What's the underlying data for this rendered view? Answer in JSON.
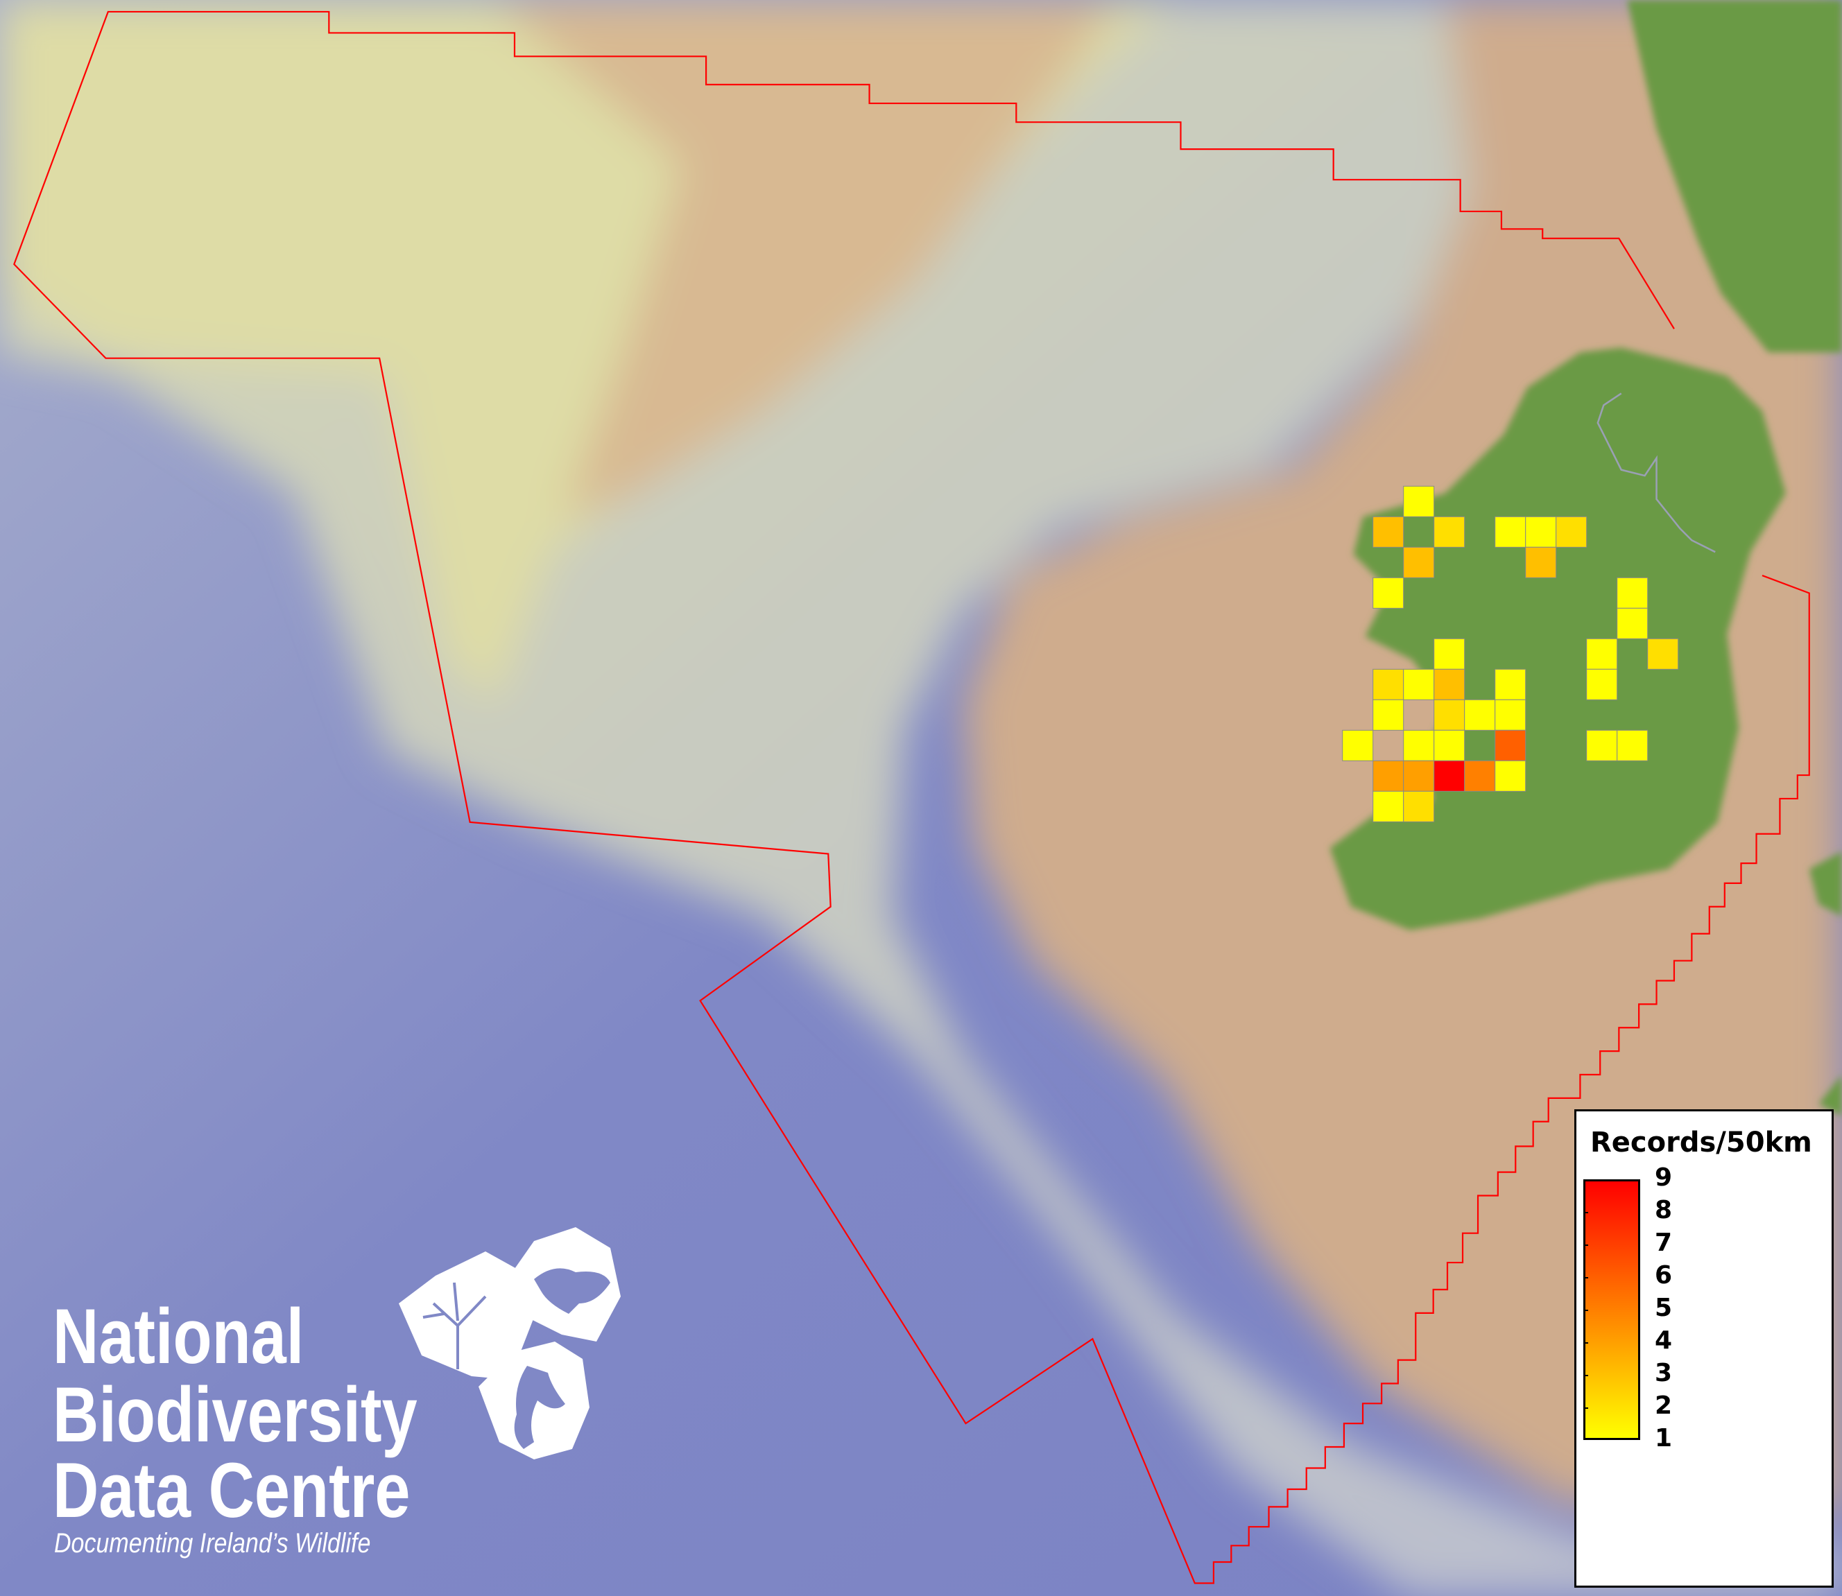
{
  "map": {
    "colors": {
      "ocean": "#8088c6",
      "shelf": "#dedca6",
      "slope": "#c9c9c6",
      "plateau": "#cfac8d",
      "land": "#6a9a45",
      "boundary": "#ff0000",
      "cell_border": "#888888"
    },
    "grid_cells": [
      {
        "col": 2,
        "row": 0,
        "value": 1
      },
      {
        "col": 1,
        "row": 1,
        "value": 3
      },
      {
        "col": 3,
        "row": 1,
        "value": 2
      },
      {
        "col": 5,
        "row": 1,
        "value": 1
      },
      {
        "col": 6,
        "row": 1,
        "value": 1
      },
      {
        "col": 7,
        "row": 1,
        "value": 2
      },
      {
        "col": 2,
        "row": 2,
        "value": 3
      },
      {
        "col": 6,
        "row": 2,
        "value": 3
      },
      {
        "col": 1,
        "row": 3,
        "value": 1
      },
      {
        "col": 9,
        "row": 3,
        "value": 1
      },
      {
        "col": 9,
        "row": 4,
        "value": 1
      },
      {
        "col": 3,
        "row": 5,
        "value": 1
      },
      {
        "col": 8,
        "row": 5,
        "value": 1
      },
      {
        "col": 10,
        "row": 5,
        "value": 2
      },
      {
        "col": 1,
        "row": 6,
        "value": 2
      },
      {
        "col": 2,
        "row": 6,
        "value": 1
      },
      {
        "col": 3,
        "row": 6,
        "value": 3
      },
      {
        "col": 5,
        "row": 6,
        "value": 1
      },
      {
        "col": 8,
        "row": 6,
        "value": 1
      },
      {
        "col": 1,
        "row": 7,
        "value": 1
      },
      {
        "col": 3,
        "row": 7,
        "value": 2
      },
      {
        "col": 4,
        "row": 7,
        "value": 1
      },
      {
        "col": 5,
        "row": 7,
        "value": 1
      },
      {
        "col": 0,
        "row": 8,
        "value": 1
      },
      {
        "col": 2,
        "row": 8,
        "value": 1
      },
      {
        "col": 3,
        "row": 8,
        "value": 1
      },
      {
        "col": 5,
        "row": 8,
        "value": 6
      },
      {
        "col": 8,
        "row": 8,
        "value": 1
      },
      {
        "col": 9,
        "row": 8,
        "value": 1
      },
      {
        "col": 1,
        "row": 9,
        "value": 4
      },
      {
        "col": 2,
        "row": 9,
        "value": 4
      },
      {
        "col": 3,
        "row": 9,
        "value": 9
      },
      {
        "col": 4,
        "row": 9,
        "value": 5
      },
      {
        "col": 5,
        "row": 9,
        "value": 1
      },
      {
        "col": 1,
        "row": 10,
        "value": 1
      },
      {
        "col": 2,
        "row": 10,
        "value": 2
      }
    ]
  },
  "legend": {
    "title": "Records/50km",
    "min": 1,
    "max": 9,
    "ticks": [
      "9",
      "8",
      "7",
      "6",
      "5",
      "4",
      "3",
      "2",
      "1"
    ],
    "color_low": "#ffff00",
    "color_high": "#ff0000"
  },
  "logo": {
    "line1": "National",
    "line2": "Biodiversity",
    "line3": "Data Centre",
    "tagline": "Documenting Ireland’s Wildlife"
  }
}
